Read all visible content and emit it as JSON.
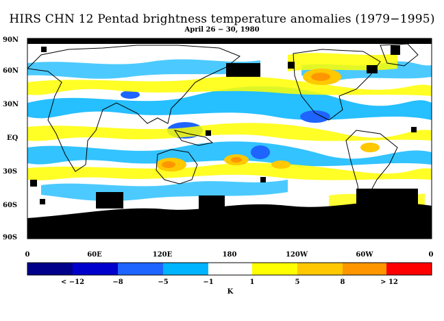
{
  "title": "HIRS CHN 12 Pentad brightness temperature anomalies (1979−1995)",
  "subtitle": "April 26 − 30, 1980",
  "lat_labels": [
    "90N",
    "60N",
    "30N",
    "EQ",
    "30S",
    "60S",
    "90S"
  ],
  "lon_labels": [
    "0",
    "60E",
    "120E",
    "180",
    "120W",
    "60W",
    "0"
  ],
  "colorbar": {
    "colors": [
      "#00008b",
      "#0000cd",
      "#1e64ff",
      "#00b4ff",
      "#ffffff",
      "#ffff00",
      "#ffc800",
      "#ff9600",
      "#ff0000"
    ],
    "labels": [
      "< −12",
      "−8",
      "−5",
      "−1",
      "1",
      "5",
      "8",
      "> 12"
    ],
    "unit": "K"
  }
}
